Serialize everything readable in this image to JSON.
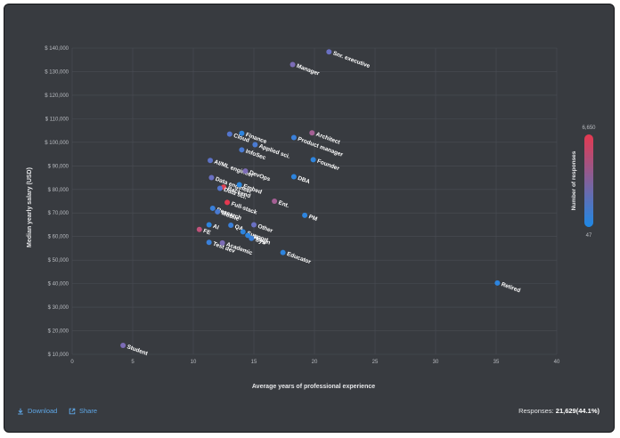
{
  "footer": {
    "download_label": "Download",
    "share_label": "Share",
    "responses_label": "Responses:",
    "responses_count": "21,629",
    "responses_pct": "(44.1%)"
  },
  "legend": {
    "title": "Number of responses",
    "max_label": "6,650",
    "min_label": "47",
    "color_low": "#1e88e5",
    "color_high": "#e53950"
  },
  "chart_data": {
    "type": "scatter",
    "xlabel": "Average years of professional experience",
    "ylabel": "Median yearly salary (USD)",
    "xlim": [
      0,
      40
    ],
    "ylim": [
      10000,
      140000
    ],
    "x_ticks": [
      0,
      5,
      10,
      15,
      20,
      25,
      30,
      35,
      40
    ],
    "y_ticks": [
      10000,
      20000,
      30000,
      40000,
      50000,
      60000,
      70000,
      80000,
      90000,
      100000,
      110000,
      120000,
      130000,
      140000
    ],
    "y_tick_labels": [
      "$ 10,000",
      "$ 20,000",
      "$ 30,000",
      "$ 40,000",
      "$ 50,000",
      "$ 60,000",
      "$ 70,000",
      "$ 80,000",
      "$ 90,000",
      "$ 100,000",
      "$ 110,000",
      "$ 120,000",
      "$ 130,000",
      "$ 140,000"
    ],
    "grid": true,
    "points": [
      {
        "label": "Snr. executive",
        "x": 21.2,
        "y": 138400,
        "color": "#6a70c2"
      },
      {
        "label": "Manager",
        "x": 18.2,
        "y": 133000,
        "color": "#7c6cb6"
      },
      {
        "label": "Architect",
        "x": 19.8,
        "y": 104000,
        "color": "#a45f94"
      },
      {
        "label": "Finance",
        "x": 14.0,
        "y": 103800,
        "color": "#2d84de"
      },
      {
        "label": "Cloud",
        "x": 13.0,
        "y": 103500,
        "color": "#5475cc"
      },
      {
        "label": "Product manager",
        "x": 18.3,
        "y": 102000,
        "color": "#3a80da"
      },
      {
        "label": "Applied sci.",
        "x": 15.1,
        "y": 99000,
        "color": "#4a7bd3"
      },
      {
        "label": "InfoSec",
        "x": 14.0,
        "y": 96800,
        "color": "#4a7bd3"
      },
      {
        "label": "Founder",
        "x": 19.9,
        "y": 92600,
        "color": "#2f85de"
      },
      {
        "label": "AI/ML engineer",
        "x": 11.4,
        "y": 92300,
        "color": "#5c72c6"
      },
      {
        "label": "DevOps",
        "x": 14.3,
        "y": 87800,
        "color": "#7c6cb6"
      },
      {
        "label": "DBA",
        "x": 18.3,
        "y": 85400,
        "color": "#2d84de"
      },
      {
        "label": "Data engineer",
        "x": 11.5,
        "y": 85000,
        "color": "#6a70c2"
      },
      {
        "label": "Embed",
        "x": 13.8,
        "y": 82000,
        "color": "#2a86e0"
      },
      {
        "label": "Backend",
        "x": 12.5,
        "y": 81000,
        "color": "#e04556"
      },
      {
        "label": "Data sci.",
        "x": 12.2,
        "y": 80500,
        "color": "#5475cc"
      },
      {
        "label": "Full-stack",
        "x": 12.8,
        "y": 74500,
        "color": "#e53950"
      },
      {
        "label": "Ent.",
        "x": 16.7,
        "y": 75000,
        "color": "#a45f94"
      },
      {
        "label": "Research",
        "x": 11.6,
        "y": 72000,
        "color": "#3a80da"
      },
      {
        "label": "PM",
        "x": 19.2,
        "y": 69000,
        "color": "#2d84de"
      },
      {
        "label": "Mobile",
        "x": 12.0,
        "y": 70500,
        "color": "#4a7bd3"
      },
      {
        "label": "AI",
        "x": 11.3,
        "y": 65000,
        "color": "#2d84de"
      },
      {
        "label": "Other",
        "x": 15.0,
        "y": 65000,
        "color": "#6a70c2"
      },
      {
        "label": "QA",
        "x": 13.1,
        "y": 64800,
        "color": "#3a80da"
      },
      {
        "label": "FE",
        "x": 10.5,
        "y": 63000,
        "color": "#c0527a"
      },
      {
        "label": "Support",
        "x": 14.1,
        "y": 62000,
        "color": "#2d84de"
      },
      {
        "label": "Design",
        "x": 14.5,
        "y": 60500,
        "color": "#2d84de"
      },
      {
        "label": "Sys",
        "x": 14.8,
        "y": 59200,
        "color": "#3a80da"
      },
      {
        "label": "Test dev",
        "x": 11.3,
        "y": 57500,
        "color": "#3a80da"
      },
      {
        "label": "Academic",
        "x": 12.4,
        "y": 57300,
        "color": "#7c6cb6"
      },
      {
        "label": "Educator",
        "x": 17.4,
        "y": 53200,
        "color": "#2d84de"
      },
      {
        "label": "Retired",
        "x": 35.1,
        "y": 40300,
        "color": "#2d84de"
      },
      {
        "label": "Student",
        "x": 4.2,
        "y": 13800,
        "color": "#7c6cb6"
      }
    ]
  }
}
